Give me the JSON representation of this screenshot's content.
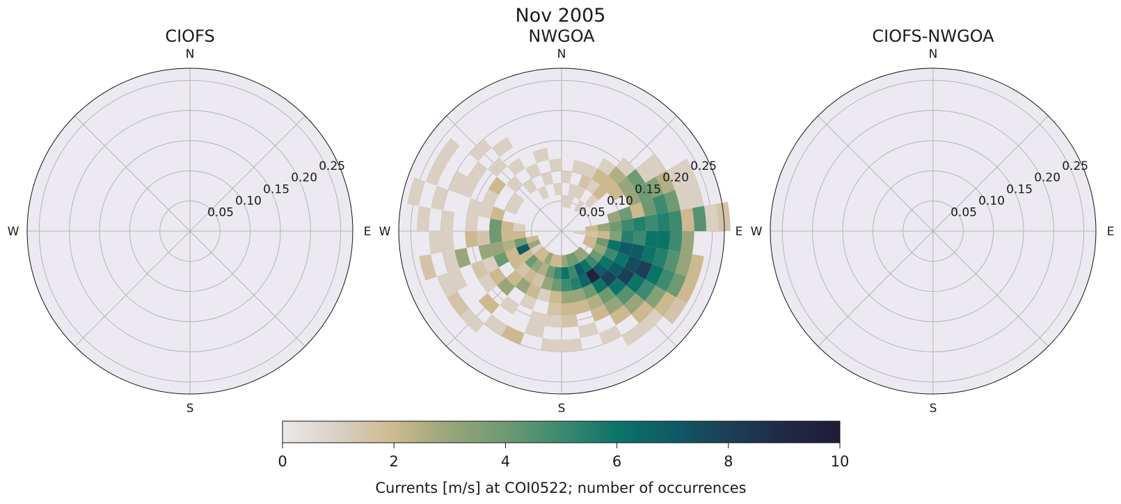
{
  "figure": {
    "suptitle": "Nov 2005"
  },
  "compass": {
    "N": "N",
    "E": "E",
    "S": "S",
    "W": "W"
  },
  "colorbar": {
    "label": "Currents [m/s] at COI0522; number of occurrences",
    "ticks": [
      "0",
      "2",
      "4",
      "6",
      "8",
      "10"
    ],
    "vmin": 0,
    "vmax": 10,
    "colormap": [
      "#ebe9eb",
      "#d9cfc3",
      "#cdb98f",
      "#98a57a",
      "#6e9a72",
      "#3d8a70",
      "#0b7467",
      "#0e5a66",
      "#1c3f57",
      "#1f2a45",
      "#201a3a"
    ]
  },
  "chart_data": [
    {
      "type": "heatmap",
      "projection": "polar-compass",
      "title": "CIOFS",
      "rmax": 0.27,
      "rticks": [
        "0.05",
        "0.10",
        "0.15",
        "0.20",
        "0.25"
      ],
      "grid": true,
      "cells": []
    },
    {
      "type": "heatmap",
      "projection": "polar-compass",
      "title": "NWGOA",
      "rmax": 0.27,
      "rticks": [
        "0.05",
        "0.10",
        "0.15",
        "0.20",
        "0.25"
      ],
      "grid": true,
      "theta_bin_deg": 10,
      "r_bin": 0.02,
      "cell_fields": [
        "direction_deg_start",
        "speed_start",
        "count"
      ],
      "cells": [
        [
          80,
          0.24,
          1
        ],
        [
          80,
          0.26,
          1.5
        ],
        [
          70,
          0.2,
          1
        ],
        [
          70,
          0.22,
          1
        ],
        [
          60,
          0.2,
          1
        ],
        [
          60,
          0.22,
          1
        ],
        [
          50,
          0.18,
          1
        ],
        [
          50,
          0.16,
          1
        ],
        [
          40,
          0.14,
          1
        ],
        [
          30,
          0.12,
          1
        ],
        [
          80,
          0.22,
          4.5
        ],
        [
          80,
          0.2,
          2
        ],
        [
          70,
          0.18,
          4
        ],
        [
          70,
          0.16,
          5
        ],
        [
          70,
          0.14,
          4
        ],
        [
          70,
          0.12,
          2
        ],
        [
          60,
          0.18,
          2.5
        ],
        [
          60,
          0.16,
          3.5
        ],
        [
          60,
          0.14,
          4
        ],
        [
          60,
          0.12,
          3
        ],
        [
          50,
          0.14,
          4
        ],
        [
          50,
          0.12,
          3
        ],
        [
          50,
          0.1,
          2
        ],
        [
          40,
          0.12,
          2.5
        ],
        [
          40,
          0.1,
          2
        ],
        [
          30,
          0.1,
          2
        ],
        [
          30,
          0.08,
          1
        ],
        [
          20,
          0.08,
          1.5
        ],
        [
          20,
          0.1,
          1
        ],
        [
          10,
          0.06,
          1
        ],
        [
          90,
          0.2,
          3
        ],
        [
          90,
          0.18,
          5
        ],
        [
          90,
          0.16,
          6
        ],
        [
          90,
          0.14,
          6
        ],
        [
          90,
          0.12,
          5
        ],
        [
          90,
          0.1,
          5.5
        ],
        [
          90,
          0.08,
          3.5
        ],
        [
          90,
          0.06,
          2
        ],
        [
          90,
          0.04,
          1.5
        ],
        [
          90,
          0.02,
          1
        ],
        [
          80,
          0.18,
          5
        ],
        [
          80,
          0.16,
          5.5
        ],
        [
          80,
          0.14,
          5
        ],
        [
          80,
          0.12,
          5.5
        ],
        [
          80,
          0.1,
          5
        ],
        [
          80,
          0.08,
          4
        ],
        [
          80,
          0.06,
          3
        ],
        [
          80,
          0.04,
          2
        ],
        [
          70,
          0.1,
          4
        ],
        [
          70,
          0.08,
          3
        ],
        [
          100,
          0.22,
          2
        ],
        [
          100,
          0.2,
          3
        ],
        [
          100,
          0.18,
          4.5
        ],
        [
          100,
          0.16,
          5.5
        ],
        [
          100,
          0.14,
          6
        ],
        [
          100,
          0.12,
          7
        ],
        [
          100,
          0.1,
          7
        ],
        [
          100,
          0.08,
          6
        ],
        [
          100,
          0.06,
          4
        ],
        [
          100,
          0.04,
          2
        ],
        [
          110,
          0.22,
          2
        ],
        [
          110,
          0.2,
          4
        ],
        [
          110,
          0.18,
          5
        ],
        [
          110,
          0.16,
          6
        ],
        [
          110,
          0.14,
          8
        ],
        [
          110,
          0.12,
          7.5
        ],
        [
          110,
          0.1,
          6
        ],
        [
          110,
          0.08,
          5
        ],
        [
          110,
          0.06,
          3
        ],
        [
          110,
          0.04,
          2
        ],
        [
          120,
          0.22,
          1.5
        ],
        [
          120,
          0.2,
          2
        ],
        [
          120,
          0.18,
          3.5
        ],
        [
          120,
          0.16,
          5
        ],
        [
          120,
          0.14,
          6
        ],
        [
          120,
          0.12,
          8
        ],
        [
          120,
          0.1,
          7
        ],
        [
          120,
          0.08,
          6
        ],
        [
          120,
          0.06,
          4
        ],
        [
          130,
          0.2,
          1
        ],
        [
          130,
          0.18,
          2
        ],
        [
          130,
          0.16,
          3
        ],
        [
          130,
          0.14,
          4.5
        ],
        [
          130,
          0.12,
          6
        ],
        [
          130,
          0.1,
          8
        ],
        [
          130,
          0.08,
          7
        ],
        [
          130,
          0.06,
          5
        ],
        [
          130,
          0.04,
          3
        ],
        [
          140,
          0.2,
          1
        ],
        [
          140,
          0.16,
          2
        ],
        [
          140,
          0.14,
          3
        ],
        [
          140,
          0.12,
          4
        ],
        [
          140,
          0.1,
          6
        ],
        [
          140,
          0.08,
          9.5
        ],
        [
          140,
          0.06,
          6
        ],
        [
          140,
          0.04,
          3
        ],
        [
          150,
          0.18,
          1
        ],
        [
          150,
          0.14,
          2
        ],
        [
          150,
          0.12,
          2.5
        ],
        [
          150,
          0.1,
          4
        ],
        [
          150,
          0.08,
          6.5
        ],
        [
          150,
          0.06,
          7
        ],
        [
          150,
          0.04,
          4
        ],
        [
          160,
          0.16,
          1
        ],
        [
          160,
          0.12,
          2
        ],
        [
          160,
          0.1,
          3
        ],
        [
          160,
          0.08,
          5.5
        ],
        [
          160,
          0.06,
          5
        ],
        [
          160,
          0.04,
          4
        ],
        [
          170,
          0.18,
          1
        ],
        [
          170,
          0.14,
          1.5
        ],
        [
          170,
          0.12,
          2
        ],
        [
          170,
          0.1,
          3
        ],
        [
          170,
          0.08,
          5
        ],
        [
          170,
          0.06,
          6
        ],
        [
          170,
          0.04,
          3
        ],
        [
          180,
          0.18,
          1
        ],
        [
          180,
          0.14,
          1
        ],
        [
          180,
          0.12,
          1.5
        ],
        [
          180,
          0.1,
          2
        ],
        [
          180,
          0.08,
          4
        ],
        [
          180,
          0.06,
          5
        ],
        [
          180,
          0.04,
          2
        ],
        [
          190,
          0.16,
          1
        ],
        [
          190,
          0.14,
          1
        ],
        [
          190,
          0.1,
          1
        ],
        [
          190,
          0.08,
          3
        ],
        [
          190,
          0.06,
          4
        ],
        [
          190,
          0.04,
          2
        ],
        [
          200,
          0.18,
          2
        ],
        [
          200,
          0.12,
          1
        ],
        [
          200,
          0.1,
          2
        ],
        [
          200,
          0.08,
          1.5
        ],
        [
          200,
          0.06,
          2.5
        ],
        [
          200,
          0.04,
          3
        ],
        [
          210,
          0.18,
          1
        ],
        [
          210,
          0.14,
          1
        ],
        [
          210,
          0.1,
          3
        ],
        [
          210,
          0.08,
          2
        ],
        [
          210,
          0.06,
          3
        ],
        [
          210,
          0.04,
          2
        ],
        [
          220,
          0.2,
          1
        ],
        [
          220,
          0.16,
          2
        ],
        [
          220,
          0.12,
          3
        ],
        [
          220,
          0.1,
          2
        ],
        [
          220,
          0.08,
          1.5
        ],
        [
          220,
          0.06,
          4
        ],
        [
          220,
          0.04,
          2
        ],
        [
          230,
          0.2,
          1.5
        ],
        [
          230,
          0.14,
          1
        ],
        [
          230,
          0.12,
          2
        ],
        [
          230,
          0.08,
          2
        ],
        [
          230,
          0.06,
          2
        ],
        [
          230,
          0.04,
          1
        ],
        [
          240,
          0.2,
          1
        ],
        [
          240,
          0.18,
          1
        ],
        [
          240,
          0.14,
          1.5
        ],
        [
          240,
          0.12,
          1
        ],
        [
          240,
          0.1,
          4
        ],
        [
          240,
          0.08,
          2
        ],
        [
          240,
          0.06,
          7
        ],
        [
          240,
          0.04,
          3
        ],
        [
          250,
          0.22,
          1.5
        ],
        [
          250,
          0.18,
          1
        ],
        [
          250,
          0.16,
          3
        ],
        [
          250,
          0.12,
          3
        ],
        [
          250,
          0.1,
          3
        ],
        [
          250,
          0.08,
          2.5
        ],
        [
          250,
          0.06,
          4
        ],
        [
          250,
          0.04,
          2
        ],
        [
          260,
          0.2,
          1
        ],
        [
          260,
          0.18,
          1
        ],
        [
          260,
          0.14,
          2
        ],
        [
          260,
          0.12,
          1.5
        ],
        [
          260,
          0.1,
          4
        ],
        [
          260,
          0.08,
          2
        ],
        [
          260,
          0.06,
          2
        ],
        [
          270,
          0.22,
          1
        ],
        [
          270,
          0.18,
          1
        ],
        [
          270,
          0.14,
          1
        ],
        [
          270,
          0.1,
          4
        ],
        [
          270,
          0.08,
          2
        ],
        [
          270,
          0.06,
          1
        ],
        [
          280,
          0.24,
          1
        ],
        [
          280,
          0.2,
          1
        ],
        [
          280,
          0.14,
          1
        ],
        [
          280,
          0.12,
          1
        ],
        [
          280,
          0.1,
          2
        ],
        [
          290,
          0.22,
          1
        ],
        [
          290,
          0.18,
          1
        ],
        [
          290,
          0.16,
          1
        ],
        [
          290,
          0.12,
          1
        ],
        [
          290,
          0.08,
          1
        ],
        [
          300,
          0.22,
          1
        ],
        [
          300,
          0.16,
          1
        ],
        [
          300,
          0.12,
          2
        ],
        [
          300,
          0.08,
          1
        ],
        [
          310,
          0.18,
          1
        ],
        [
          310,
          0.14,
          1
        ],
        [
          310,
          0.1,
          1
        ],
        [
          320,
          0.16,
          1
        ],
        [
          320,
          0.12,
          1
        ],
        [
          320,
          0.08,
          1
        ],
        [
          330,
          0.1,
          1
        ],
        [
          330,
          0.06,
          1
        ],
        [
          340,
          0.12,
          1
        ],
        [
          340,
          0.08,
          1
        ],
        [
          350,
          0.1,
          1
        ],
        [
          350,
          0.06,
          1
        ],
        [
          0,
          0.08,
          1
        ],
        [
          0,
          0.04,
          1
        ],
        [
          10,
          0.1,
          1
        ],
        [
          10,
          0.04,
          1
        ],
        [
          20,
          0.06,
          1
        ],
        [
          30,
          0.04,
          1
        ],
        [
          40,
          0.06,
          1
        ],
        [
          40,
          0.08,
          2
        ]
      ]
    },
    {
      "type": "heatmap",
      "projection": "polar-compass",
      "title": "CIOFS-NWGOA",
      "rmax": 0.27,
      "rticks": [
        "0.05",
        "0.10",
        "0.15",
        "0.20",
        "0.25"
      ],
      "grid": true,
      "cells": []
    }
  ]
}
